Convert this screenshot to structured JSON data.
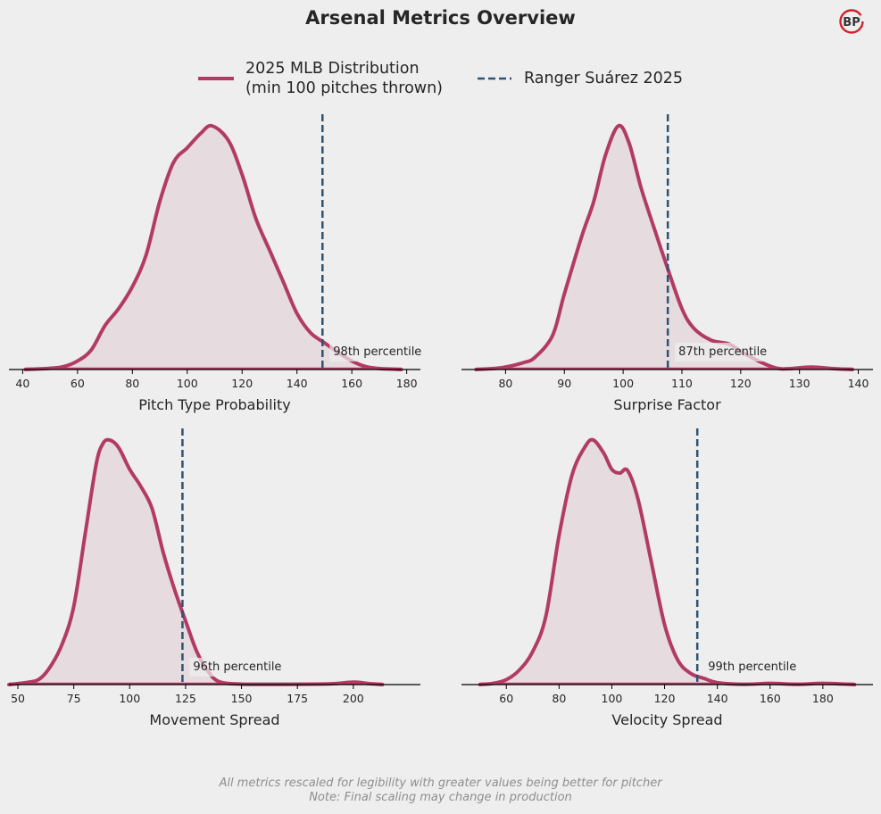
{
  "title": "Arsenal Metrics Overview",
  "logo": {
    "icon": "bp-logo-icon",
    "text": "BP",
    "ring_color": "#d0202a"
  },
  "legend": {
    "distribution_line1": "2025 MLB Distribution",
    "distribution_line2": "(min 100 pitches thrown)",
    "player": "Ranger Suárez 2025"
  },
  "colors": {
    "background": "#eeeeee",
    "distribution": "#b23b64",
    "distribution_fill": "#e6dce0",
    "player_line": "#2c5274",
    "axis": "#000000"
  },
  "footer": {
    "line1": "All metrics rescaled for legibility with greater values being better for pitcher",
    "line2": "Note: Final scaling may change in production"
  },
  "chart_data": [
    {
      "type": "area",
      "title": "Pitch Type Probability",
      "xlabel": "Pitch Type Probability",
      "xlim": [
        35,
        185
      ],
      "xticks": [
        40,
        60,
        80,
        100,
        120,
        140,
        160,
        180
      ],
      "player_value": 149.3,
      "percentile_label": "98th percentile",
      "density": {
        "x": [
          41,
          50,
          55,
          60,
          65,
          70,
          75,
          80,
          85,
          90,
          95,
          100,
          105,
          109,
          115,
          120,
          125,
          130,
          135,
          140,
          145,
          150,
          155,
          160,
          165,
          170,
          178
        ],
        "y": [
          0,
          0.005,
          0.012,
          0.035,
          0.08,
          0.18,
          0.25,
          0.34,
          0.47,
          0.69,
          0.85,
          0.91,
          0.97,
          1.0,
          0.94,
          0.8,
          0.62,
          0.49,
          0.36,
          0.23,
          0.15,
          0.11,
          0.07,
          0.035,
          0.012,
          0.004,
          0
        ]
      }
    },
    {
      "type": "area",
      "title": "Surprise Factor",
      "xlabel": "Surprise Factor",
      "xlim": [
        72.5,
        142.5
      ],
      "xticks": [
        80,
        90,
        100,
        110,
        120,
        130,
        140
      ],
      "player_value": 107.6,
      "percentile_label": "87th percentile",
      "density": {
        "x": [
          75,
          78,
          80,
          83,
          85,
          88,
          90,
          93,
          95,
          97,
          99.2,
          101,
          103,
          105,
          107.5,
          110,
          112,
          115,
          118,
          120,
          123,
          126,
          128,
          132,
          136,
          139
        ],
        "y": [
          0,
          0.004,
          0.01,
          0.028,
          0.05,
          0.14,
          0.31,
          0.55,
          0.69,
          0.88,
          1.0,
          0.93,
          0.75,
          0.6,
          0.42,
          0.25,
          0.17,
          0.12,
          0.105,
          0.075,
          0.035,
          0.006,
          0.003,
          0.01,
          0.003,
          0
        ]
      }
    },
    {
      "type": "area",
      "title": "Movement Spread",
      "xlabel": "Movement Spread",
      "xlim": [
        46,
        230
      ],
      "xticks": [
        50,
        75,
        100,
        125,
        150,
        175,
        200
      ],
      "player_value": 123.6,
      "percentile_label": "96th percentile",
      "density": {
        "x": [
          46,
          55,
          60,
          65,
          70,
          75,
          80,
          85,
          88,
          91,
          95,
          100,
          105,
          110,
          115,
          120,
          125,
          130,
          135,
          140,
          150,
          170,
          190,
          200,
          207,
          213
        ],
        "y": [
          0,
          0.01,
          0.025,
          0.08,
          0.17,
          0.32,
          0.61,
          0.9,
          0.985,
          1.0,
          0.97,
          0.88,
          0.81,
          0.72,
          0.54,
          0.39,
          0.26,
          0.135,
          0.055,
          0.012,
          0.002,
          0.001,
          0.003,
          0.01,
          0.004,
          0
        ]
      }
    },
    {
      "type": "area",
      "title": "Velocity Spread",
      "xlabel": "Velocity Spread",
      "xlim": [
        43,
        199
      ],
      "xticks": [
        60,
        80,
        100,
        120,
        140,
        160,
        180
      ],
      "player_value": 132.4,
      "percentile_label": "99th percentile",
      "density": {
        "x": [
          50,
          55,
          60,
          65,
          70,
          75,
          80,
          85,
          90,
          93,
          97,
          100,
          103,
          106,
          110,
          115,
          120,
          125,
          130,
          135,
          140,
          150,
          160,
          170,
          180,
          192
        ],
        "y": [
          0,
          0.005,
          0.02,
          0.06,
          0.135,
          0.28,
          0.61,
          0.86,
          0.975,
          1.0,
          0.945,
          0.88,
          0.865,
          0.875,
          0.755,
          0.5,
          0.245,
          0.1,
          0.045,
          0.025,
          0.008,
          0.001,
          0.005,
          0.001,
          0.005,
          0
        ]
      }
    }
  ]
}
